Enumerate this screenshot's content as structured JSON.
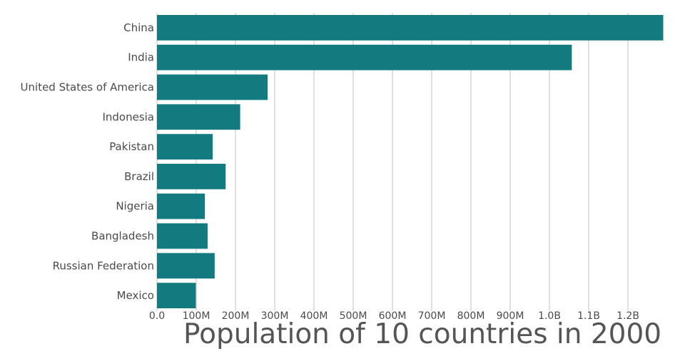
{
  "chart_data": {
    "type": "bar",
    "orientation": "horizontal",
    "title": "Population of 10 countries in 2000",
    "xlabel": "",
    "ylabel": "",
    "categories": [
      "China",
      "India",
      "United States of America",
      "Indonesia",
      "Pakistan",
      "Brazil",
      "Nigeria",
      "Bangladesh",
      "Russian Federation",
      "Mexico"
    ],
    "values": [
      1290000000,
      1057000000,
      282000000,
      212000000,
      142000000,
      175000000,
      122000000,
      129000000,
      147000000,
      99000000
    ],
    "xlim": [
      0,
      1300000000
    ],
    "ticks": [
      0,
      100000000,
      200000000,
      300000000,
      400000000,
      500000000,
      600000000,
      700000000,
      800000000,
      900000000,
      1000000000,
      1100000000,
      1200000000
    ],
    "tick_labels": [
      "0.0",
      "100M",
      "200M",
      "300M",
      "400M",
      "500M",
      "600M",
      "700M",
      "800M",
      "900M",
      "1.0B",
      "1.1B",
      "1.2B"
    ],
    "grid": true,
    "bar_color": "#137b7f",
    "grid_color": "#d6d6d6",
    "text_color": "#4a4a4a",
    "title_color": "#555555"
  }
}
